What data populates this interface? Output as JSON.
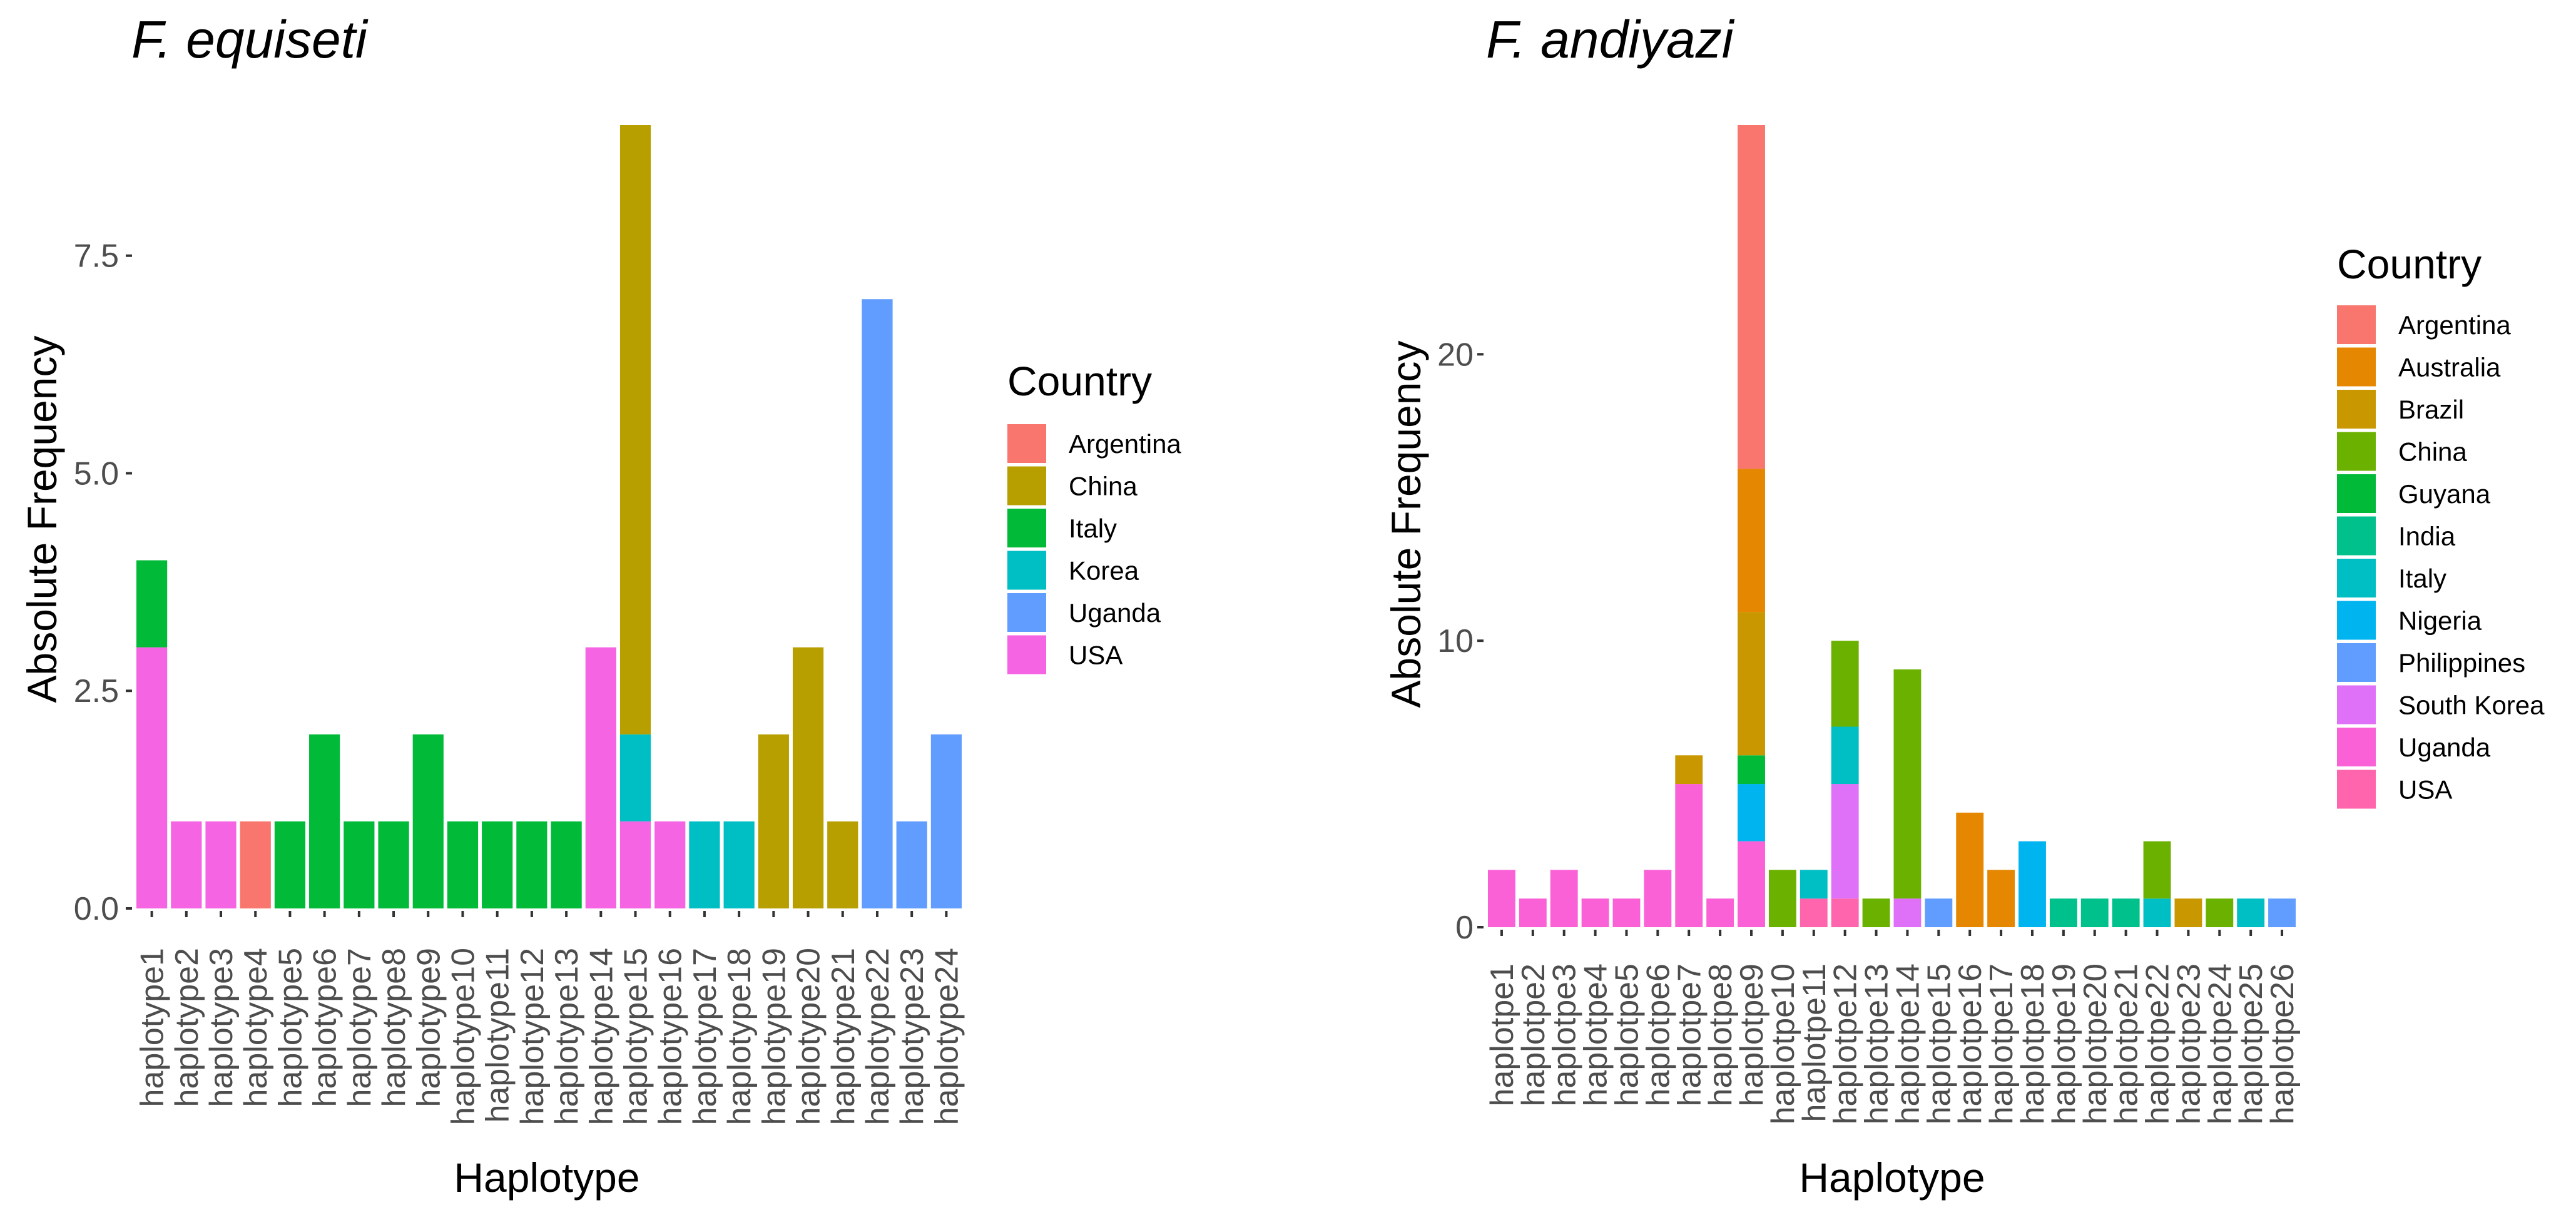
{
  "chart_data": [
    {
      "type": "bar",
      "stacked": true,
      "title": "F. equiseti",
      "xlabel": "Haplotype",
      "ylabel": "Absolute Frequency",
      "ylim": [
        0,
        9
      ],
      "yticks": [
        0,
        2.5,
        5,
        7.5
      ],
      "ytick_labels": [
        "0.0",
        "2.5",
        "5.0",
        "7.5"
      ],
      "legend_title": "Country",
      "legend_position": "right",
      "categories": [
        "haplotype1",
        "haplotype2",
        "haplotype3",
        "haplotype4",
        "haplotype5",
        "haplotype6",
        "haplotype7",
        "haplotype8",
        "haplotype9",
        "haplotype10",
        "haplotype11",
        "haplotype12",
        "haplotype13",
        "haplotype14",
        "haplotype15",
        "haplotype16",
        "haplotype17",
        "haplotype18",
        "haplotype19",
        "haplotype20",
        "haplotype21",
        "haplotype22",
        "haplotype23",
        "haplotype24"
      ],
      "series": [
        {
          "name": "Argentina",
          "color": "#F8766D",
          "values": [
            0,
            0,
            0,
            1,
            0,
            0,
            0,
            0,
            0,
            0,
            0,
            0,
            0,
            0,
            0,
            0,
            0,
            0,
            0,
            0,
            0,
            0,
            0,
            0
          ]
        },
        {
          "name": "China",
          "color": "#B79F00",
          "values": [
            0,
            0,
            0,
            0,
            0,
            0,
            0,
            0,
            0,
            0,
            0,
            0,
            0,
            0,
            7,
            0,
            0,
            0,
            2,
            3,
            1,
            0,
            0,
            0
          ]
        },
        {
          "name": "Italy",
          "color": "#00BA38",
          "values": [
            1,
            0,
            0,
            0,
            1,
            2,
            1,
            1,
            2,
            1,
            1,
            1,
            1,
            0,
            0,
            0,
            0,
            0,
            0,
            0,
            0,
            0,
            0,
            0
          ]
        },
        {
          "name": "Korea",
          "color": "#00BFC4",
          "values": [
            0,
            0,
            0,
            0,
            0,
            0,
            0,
            0,
            0,
            0,
            0,
            0,
            0,
            0,
            1,
            0,
            1,
            1,
            0,
            0,
            0,
            0,
            0,
            0
          ]
        },
        {
          "name": "Uganda",
          "color": "#619CFF",
          "values": [
            0,
            0,
            0,
            0,
            0,
            0,
            0,
            0,
            0,
            0,
            0,
            0,
            0,
            0,
            0,
            0,
            0,
            0,
            0,
            0,
            0,
            7,
            1,
            2
          ]
        },
        {
          "name": "USA",
          "color": "#F564E3",
          "values": [
            3,
            1,
            1,
            0,
            0,
            0,
            0,
            0,
            0,
            0,
            0,
            0,
            0,
            3,
            1,
            1,
            0,
            0,
            0,
            0,
            0,
            0,
            0,
            0
          ]
        }
      ]
    },
    {
      "type": "bar",
      "stacked": true,
      "title": "F. andiyazi",
      "xlabel": "Haplotype",
      "ylabel": "Absolute Frequency",
      "ylim": [
        0,
        28
      ],
      "yticks": [
        0,
        10,
        20
      ],
      "ytick_labels": [
        "0",
        "10",
        "20"
      ],
      "legend_title": "Country",
      "legend_position": "right",
      "categories": [
        "haplotpe1",
        "haplotpe2",
        "haplotpe3",
        "haplotpe4",
        "haplotpe5",
        "haplotpe6",
        "haplotpe7",
        "haplotpe8",
        "haplotpe9",
        "haplotpe10",
        "haplotpe11",
        "haplotpe12",
        "haplotpe13",
        "haplotpe14",
        "haplotpe15",
        "haplotpe16",
        "haplotpe17",
        "haplotpe18",
        "haplotpe19",
        "haplotpe20",
        "haplotpe21",
        "haplotpe22",
        "haplotpe23",
        "haplotpe24",
        "haplotpe25",
        "haplotpe26"
      ],
      "series": [
        {
          "name": "Argentina",
          "color": "#F8766D",
          "values": [
            0,
            0,
            0,
            0,
            0,
            0,
            0,
            0,
            12,
            0,
            0,
            0,
            0,
            0,
            0,
            0,
            0,
            0,
            0,
            0,
            0,
            0,
            0,
            0,
            0,
            0
          ]
        },
        {
          "name": "Australia",
          "color": "#E58700",
          "values": [
            0,
            0,
            0,
            0,
            0,
            0,
            0,
            0,
            5,
            0,
            0,
            0,
            0,
            0,
            0,
            4,
            2,
            0,
            0,
            0,
            0,
            0,
            0,
            0,
            0,
            0
          ]
        },
        {
          "name": "Brazil",
          "color": "#C99800",
          "values": [
            0,
            0,
            0,
            0,
            0,
            0,
            1,
            0,
            5,
            0,
            0,
            0,
            0,
            0,
            0,
            0,
            0,
            0,
            0,
            0,
            0,
            0,
            1,
            0,
            0,
            0
          ]
        },
        {
          "name": "China",
          "color": "#6BB100",
          "values": [
            0,
            0,
            0,
            0,
            0,
            0,
            0,
            0,
            0,
            2,
            0,
            3,
            1,
            8,
            0,
            0,
            0,
            0,
            0,
            0,
            0,
            2,
            0,
            1,
            0,
            0
          ]
        },
        {
          "name": "Guyana",
          "color": "#00BA38",
          "values": [
            0,
            0,
            0,
            0,
            0,
            0,
            0,
            0,
            1,
            0,
            0,
            0,
            0,
            0,
            0,
            0,
            0,
            0,
            0,
            0,
            0,
            0,
            0,
            0,
            0,
            0
          ]
        },
        {
          "name": "India",
          "color": "#00C08B",
          "values": [
            0,
            0,
            0,
            0,
            0,
            0,
            0,
            0,
            0,
            0,
            0,
            0,
            0,
            0,
            0,
            0,
            0,
            0,
            1,
            1,
            1,
            0,
            0,
            0,
            0,
            0
          ]
        },
        {
          "name": "Italy",
          "color": "#00BFC4",
          "values": [
            0,
            0,
            0,
            0,
            0,
            0,
            0,
            0,
            0,
            0,
            1,
            2,
            0,
            0,
            0,
            0,
            0,
            0,
            0,
            0,
            0,
            1,
            0,
            0,
            1,
            0
          ]
        },
        {
          "name": "Nigeria",
          "color": "#00B4F0",
          "values": [
            0,
            0,
            0,
            0,
            0,
            0,
            0,
            0,
            2,
            0,
            0,
            0,
            0,
            0,
            0,
            0,
            0,
            3,
            0,
            0,
            0,
            0,
            0,
            0,
            0,
            0
          ]
        },
        {
          "name": "Philippines",
          "color": "#619CFF",
          "values": [
            0,
            0,
            0,
            0,
            0,
            0,
            0,
            0,
            0,
            0,
            0,
            0,
            0,
            0,
            1,
            0,
            0,
            0,
            0,
            0,
            0,
            0,
            0,
            0,
            0,
            1
          ]
        },
        {
          "name": "South Korea",
          "color": "#DF70F8",
          "values": [
            0,
            0,
            0,
            0,
            0,
            0,
            0,
            0,
            0,
            0,
            0,
            4,
            0,
            1,
            0,
            0,
            0,
            0,
            0,
            0,
            0,
            0,
            0,
            0,
            0,
            0
          ]
        },
        {
          "name": "Uganda",
          "color": "#FB61D7",
          "values": [
            2,
            1,
            2,
            1,
            1,
            2,
            5,
            1,
            3,
            0,
            0,
            0,
            0,
            0,
            0,
            0,
            0,
            0,
            0,
            0,
            0,
            0,
            0,
            0,
            0,
            0
          ]
        },
        {
          "name": "USA",
          "color": "#FF65AC",
          "values": [
            0,
            0,
            0,
            0,
            0,
            0,
            0,
            0,
            0,
            0,
            1,
            1,
            0,
            0,
            0,
            0,
            0,
            0,
            0,
            0,
            0,
            0,
            0,
            0,
            0,
            0
          ]
        }
      ]
    }
  ]
}
